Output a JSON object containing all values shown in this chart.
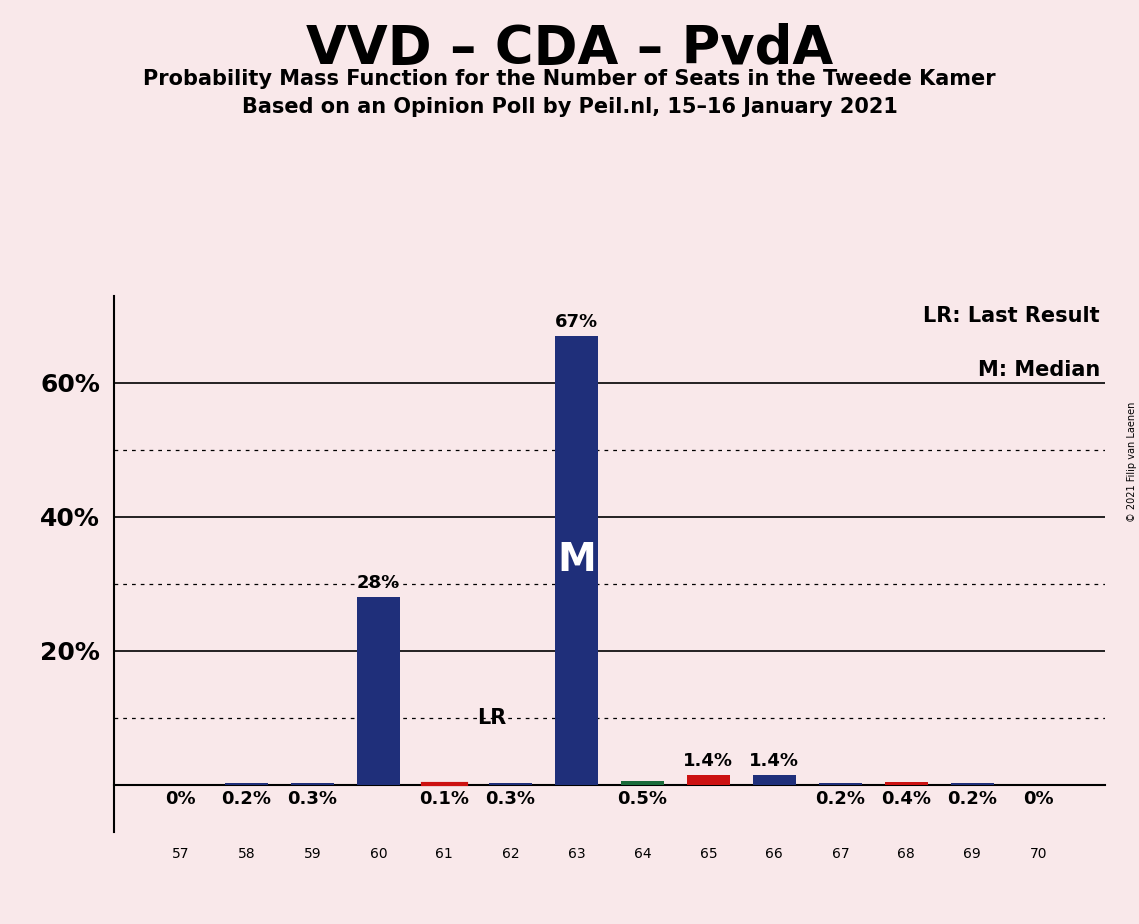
{
  "title": "VVD – CDA – PvdA",
  "subtitle1": "Probability Mass Function for the Number of Seats in the Tweede Kamer",
  "subtitle2": "Based on an Opinion Poll by Peil.nl, 15–16 January 2021",
  "copyright": "© 2021 Filip van Laenen",
  "categories": [
    57,
    58,
    59,
    60,
    61,
    62,
    63,
    64,
    65,
    66,
    67,
    68,
    69,
    70
  ],
  "values": [
    0.0,
    0.2,
    0.3,
    28.0,
    0.1,
    0.3,
    67.0,
    0.5,
    1.4,
    1.4,
    0.2,
    0.4,
    0.2,
    0.0
  ],
  "labels": [
    "0%",
    "0.2%",
    "0.3%",
    "28%",
    "0.1%",
    "0.3%",
    "67%",
    "0.5%",
    "1.4%",
    "1.4%",
    "0.2%",
    "0.4%",
    "0.2%",
    "0%"
  ],
  "bar_colors": [
    "#1f2f7a",
    "#1f2f7a",
    "#1f2f7a",
    "#1f2f7a",
    "#1f2f7a",
    "#1f2f7a",
    "#1f2f7a",
    "#1a6b3a",
    "#cc1111",
    "#1f2f7a",
    "#1f2f7a",
    "#cc1111",
    "#1f2f7a",
    "#1f2f7a"
  ],
  "median_seat": 63,
  "lr_seat": 61,
  "legend_text1": "LR: Last Result",
  "legend_text2": "M: Median",
  "background_color": "#f9e8ea",
  "ytick_labels": [
    "20%",
    "40%",
    "60%"
  ],
  "ytick_vals": [
    20,
    40,
    60
  ],
  "ylim": [
    0,
    73
  ],
  "solid_gridlines": [
    20,
    40,
    60
  ],
  "dotted_gridlines": [
    10,
    30,
    50
  ]
}
